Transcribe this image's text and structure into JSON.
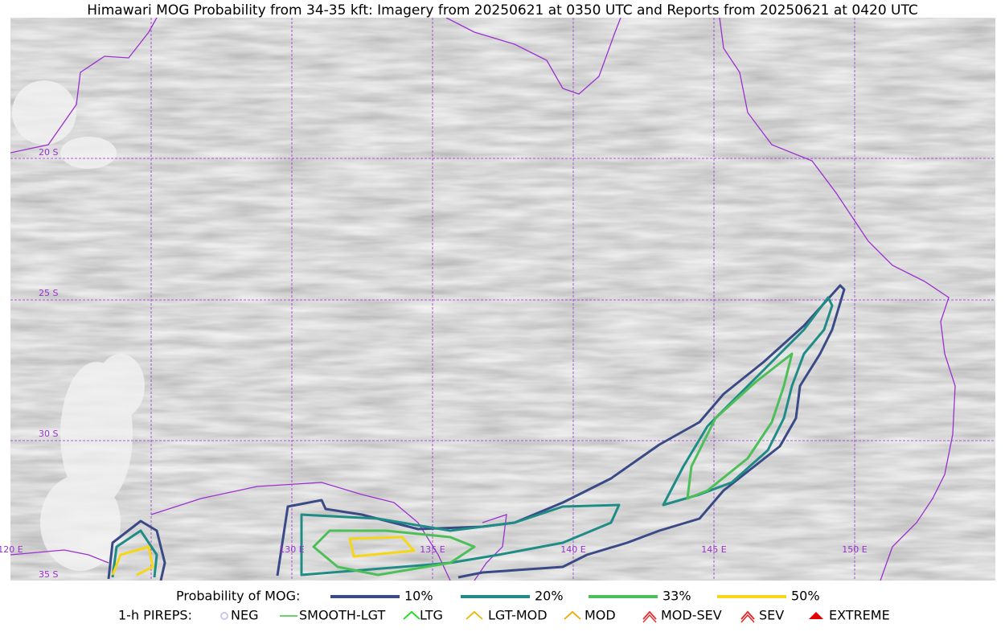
{
  "title": "Himawari MOG Probability from 34-35 kft: Imagery from 20250621 at 0350 UTC and Reports from 20250621 at 0420 UTC",
  "map": {
    "lon_labels": [
      "120 E",
      "130 E",
      "135 E",
      "140 E",
      "145 E",
      "150 E"
    ],
    "lat_labels": [
      "20 S",
      "25 S",
      "30 S",
      "35 S"
    ]
  },
  "legend": {
    "probability": {
      "label": "Probability of MOG:",
      "items": [
        {
          "label": "10%",
          "color": "#3a4a86"
        },
        {
          "label": "20%",
          "color": "#1f8c86"
        },
        {
          "label": "33%",
          "color": "#4dbf59"
        },
        {
          "label": "50%",
          "color": "#f6d619"
        }
      ]
    },
    "pireps": {
      "label": "1-h PIREPS:",
      "items": [
        {
          "label": "NEG",
          "color": "#c8c8f0"
        },
        {
          "label": "SMOOTH-LGT",
          "color": "#33cc33"
        },
        {
          "label": "LTG",
          "color": "#11dd11"
        },
        {
          "label": "LGT-MOD",
          "color": "#f0b400"
        },
        {
          "label": "MOD",
          "color": "#f0a800"
        },
        {
          "label": "MOD-SEV",
          "color": "#e83030"
        },
        {
          "label": "SEV",
          "color": "#e82020"
        },
        {
          "label": "EXTREME",
          "color": "#e00000"
        }
      ]
    }
  }
}
